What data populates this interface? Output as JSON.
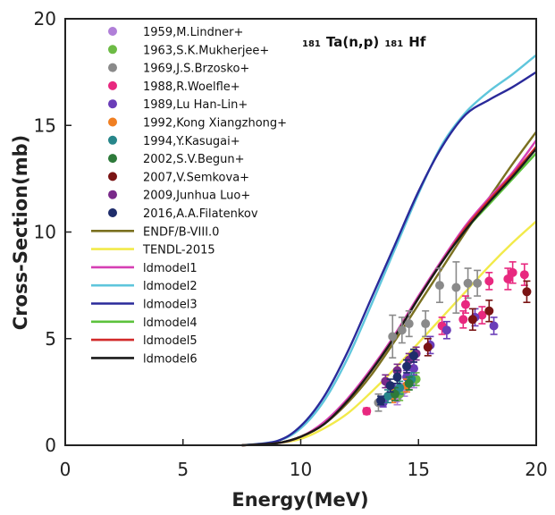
{
  "chart_data": {
    "type": "scatter",
    "title_parts": {
      "a_mass": "181",
      "target": "Ta(n,p)",
      "p_mass": "181",
      "product": "Hf"
    },
    "xlabel": "Energy(MeV)",
    "ylabel": "Cross-Section(mb)",
    "xlim": [
      0,
      20
    ],
    "ylim": [
      0,
      20
    ],
    "x_ticks": [
      "0",
      "5",
      "10",
      "15",
      "20"
    ],
    "y_ticks": [
      "0",
      "5",
      "10",
      "15",
      "20"
    ],
    "grid": false,
    "legend_position": "top-left",
    "experimental": [
      {
        "name": "1959,M.Lindner+",
        "color": "#b07fd8",
        "points": [
          {
            "x": 14.1,
            "y": 2.2,
            "err": 0.3
          },
          {
            "x": 14.4,
            "y": 2.6,
            "err": 0.3
          },
          {
            "x": 14.8,
            "y": 3.0,
            "err": 0.3
          }
        ]
      },
      {
        "name": "1963,S.K.Mukherjee+",
        "color": "#6dbb45",
        "points": [
          {
            "x": 14.2,
            "y": 2.4,
            "err": 0.3
          },
          {
            "x": 14.6,
            "y": 2.9,
            "err": 0.3
          },
          {
            "x": 14.9,
            "y": 3.1,
            "err": 0.3
          }
        ]
      },
      {
        "name": "1969,J.S.Brzosko+",
        "color": "#8a8a8a",
        "points": [
          {
            "x": 13.3,
            "y": 2.0,
            "err": 0.4
          },
          {
            "x": 13.9,
            "y": 5.1,
            "err": 1.0
          },
          {
            "x": 14.3,
            "y": 5.4,
            "err": 0.6
          },
          {
            "x": 14.6,
            "y": 5.7,
            "err": 0.6
          },
          {
            "x": 15.3,
            "y": 5.7,
            "err": 0.6
          },
          {
            "x": 15.9,
            "y": 7.5,
            "err": 0.8
          },
          {
            "x": 16.6,
            "y": 7.4,
            "err": 1.2
          },
          {
            "x": 17.1,
            "y": 7.6,
            "err": 0.7
          },
          {
            "x": 17.5,
            "y": 7.6,
            "err": 0.6
          }
        ]
      },
      {
        "name": "1988,R.Woelfle+",
        "color": "#e8287f",
        "points": [
          {
            "x": 12.8,
            "y": 1.6,
            "err": 0.15
          },
          {
            "x": 16.0,
            "y": 5.6,
            "err": 0.4
          },
          {
            "x": 16.9,
            "y": 5.9,
            "err": 0.4
          },
          {
            "x": 17.0,
            "y": 6.6,
            "err": 0.4
          },
          {
            "x": 17.7,
            "y": 6.1,
            "err": 0.4
          },
          {
            "x": 18.0,
            "y": 7.7,
            "err": 0.4
          },
          {
            "x": 18.8,
            "y": 7.8,
            "err": 0.5
          },
          {
            "x": 19.0,
            "y": 8.1,
            "err": 0.5
          },
          {
            "x": 19.5,
            "y": 8.0,
            "err": 0.5
          }
        ]
      },
      {
        "name": "1989,Lu Han-Lin+",
        "color": "#6a3db8",
        "points": [
          {
            "x": 13.5,
            "y": 2.0,
            "err": 0.2
          },
          {
            "x": 14.0,
            "y": 2.6,
            "err": 0.3
          },
          {
            "x": 14.5,
            "y": 3.2,
            "err": 0.3
          },
          {
            "x": 14.8,
            "y": 3.6,
            "err": 0.3
          },
          {
            "x": 15.5,
            "y": 4.7,
            "err": 0.4
          },
          {
            "x": 16.2,
            "y": 5.4,
            "err": 0.4
          },
          {
            "x": 17.4,
            "y": 6.0,
            "err": 0.4
          },
          {
            "x": 18.2,
            "y": 5.6,
            "err": 0.4
          }
        ]
      },
      {
        "name": "1992,Kong Xiangzhong+",
        "color": "#f07f22",
        "points": [
          {
            "x": 13.9,
            "y": 2.3,
            "err": 0.3
          },
          {
            "x": 14.5,
            "y": 2.8,
            "err": 0.3
          }
        ]
      },
      {
        "name": "1994,Y.Kasugai+",
        "color": "#27868a",
        "points": [
          {
            "x": 13.7,
            "y": 2.3,
            "err": 0.3
          },
          {
            "x": 14.2,
            "y": 2.7,
            "err": 0.3
          },
          {
            "x": 14.7,
            "y": 3.1,
            "err": 0.3
          }
        ]
      },
      {
        "name": "2002,S.V.Begun+",
        "color": "#2d7a3a",
        "points": [
          {
            "x": 14.0,
            "y": 2.4,
            "err": 0.3
          },
          {
            "x": 14.6,
            "y": 2.9,
            "err": 0.3
          }
        ]
      },
      {
        "name": "2007,V.Semkova+",
        "color": "#7a1414",
        "points": [
          {
            "x": 15.4,
            "y": 4.6,
            "err": 0.4
          },
          {
            "x": 17.3,
            "y": 5.9,
            "err": 0.5
          },
          {
            "x": 18.0,
            "y": 6.3,
            "err": 0.5
          },
          {
            "x": 19.6,
            "y": 7.2,
            "err": 0.5
          }
        ]
      },
      {
        "name": "2009,Junhua Luo+",
        "color": "#7a2a8a",
        "points": [
          {
            "x": 13.6,
            "y": 3.0,
            "err": 0.3
          },
          {
            "x": 14.1,
            "y": 3.5,
            "err": 0.3
          },
          {
            "x": 14.6,
            "y": 4.0,
            "err": 0.3
          },
          {
            "x": 14.9,
            "y": 4.3,
            "err": 0.3
          }
        ]
      },
      {
        "name": "2016,A.A.Filatenkov",
        "color": "#1f2d6b",
        "points": [
          {
            "x": 13.4,
            "y": 2.1,
            "err": 0.2
          },
          {
            "x": 13.8,
            "y": 2.8,
            "err": 0.3
          },
          {
            "x": 14.1,
            "y": 3.2,
            "err": 0.3
          },
          {
            "x": 14.5,
            "y": 3.7,
            "err": 0.3
          },
          {
            "x": 14.8,
            "y": 4.2,
            "err": 0.3
          }
        ]
      }
    ],
    "evaluations": [
      {
        "name": "ENDF/B-VIII.0",
        "color": "#7a7020",
        "points": [
          [
            7.5,
            0
          ],
          [
            9,
            0.1
          ],
          [
            10,
            0.4
          ],
          [
            11,
            1.0
          ],
          [
            12,
            2.0
          ],
          [
            13,
            3.3
          ],
          [
            14,
            4.9
          ],
          [
            15,
            6.6
          ],
          [
            16,
            8.3
          ],
          [
            17,
            10.0
          ],
          [
            18,
            11.6
          ],
          [
            19,
            13.2
          ],
          [
            20,
            14.7
          ]
        ]
      },
      {
        "name": "TENDL-2015",
        "color": "#f2ea4a",
        "points": [
          [
            7.5,
            0
          ],
          [
            9,
            0.1
          ],
          [
            10,
            0.3
          ],
          [
            11,
            0.8
          ],
          [
            12,
            1.5
          ],
          [
            13,
            2.5
          ],
          [
            14,
            3.6
          ],
          [
            15,
            4.8
          ],
          [
            16,
            6.0
          ],
          [
            17,
            7.2
          ],
          [
            18,
            8.4
          ],
          [
            19,
            9.5
          ],
          [
            20,
            10.5
          ]
        ]
      },
      {
        "name": "ldmodel1",
        "color": "#d63fb4",
        "points": [
          [
            7.5,
            0
          ],
          [
            9,
            0.1
          ],
          [
            10,
            0.4
          ],
          [
            11,
            1.1
          ],
          [
            12,
            2.2
          ],
          [
            13,
            3.6
          ],
          [
            14,
            5.2
          ],
          [
            15,
            7.0
          ],
          [
            16,
            8.7
          ],
          [
            17,
            10.3
          ],
          [
            18,
            11.6
          ],
          [
            19,
            12.8
          ],
          [
            20,
            14.3
          ]
        ]
      },
      {
        "name": "ldmodel2",
        "color": "#5fc6dc",
        "points": [
          [
            7.5,
            0
          ],
          [
            9,
            0.2
          ],
          [
            10,
            0.8
          ],
          [
            11,
            2.1
          ],
          [
            12,
            4.1
          ],
          [
            13,
            6.6
          ],
          [
            14,
            9.2
          ],
          [
            15,
            11.8
          ],
          [
            16,
            14.1
          ],
          [
            17,
            15.6
          ],
          [
            18,
            16.6
          ],
          [
            19,
            17.4
          ],
          [
            20,
            18.3
          ]
        ]
      },
      {
        "name": "ldmodel3",
        "color": "#2a2a9a",
        "points": [
          [
            7.5,
            0
          ],
          [
            9,
            0.2
          ],
          [
            10,
            0.9
          ],
          [
            11,
            2.3
          ],
          [
            12,
            4.4
          ],
          [
            13,
            6.9
          ],
          [
            14,
            9.4
          ],
          [
            15,
            11.9
          ],
          [
            16,
            14.0
          ],
          [
            17,
            15.5
          ],
          [
            18,
            16.2
          ],
          [
            19,
            16.8
          ],
          [
            20,
            17.5
          ]
        ]
      },
      {
        "name": "ldmodel4",
        "color": "#5cc23c",
        "points": [
          [
            7.5,
            0
          ],
          [
            9,
            0.1
          ],
          [
            10,
            0.4
          ],
          [
            11,
            1.0
          ],
          [
            12,
            2.1
          ],
          [
            13,
            3.5
          ],
          [
            14,
            5.1
          ],
          [
            15,
            6.9
          ],
          [
            16,
            8.6
          ],
          [
            17,
            10.1
          ],
          [
            18,
            11.3
          ],
          [
            19,
            12.5
          ],
          [
            20,
            13.7
          ]
        ]
      },
      {
        "name": "ldmodel5",
        "color": "#d22a2a",
        "points": [
          [
            7.5,
            0
          ],
          [
            9,
            0.1
          ],
          [
            10,
            0.4
          ],
          [
            11,
            1.0
          ],
          [
            12,
            2.1
          ],
          [
            13,
            3.5
          ],
          [
            14,
            5.1
          ],
          [
            15,
            6.9
          ],
          [
            16,
            8.6
          ],
          [
            17,
            10.2
          ],
          [
            18,
            11.5
          ],
          [
            19,
            12.7
          ],
          [
            20,
            14.0
          ]
        ]
      },
      {
        "name": "ldmodel6",
        "color": "#1a1a1a",
        "points": [
          [
            7.5,
            0
          ],
          [
            9,
            0.1
          ],
          [
            10,
            0.4
          ],
          [
            11,
            1.0
          ],
          [
            12,
            2.1
          ],
          [
            13,
            3.5
          ],
          [
            14,
            5.1
          ],
          [
            15,
            6.9
          ],
          [
            16,
            8.6
          ],
          [
            17,
            10.1
          ],
          [
            18,
            11.4
          ],
          [
            19,
            12.6
          ],
          [
            20,
            13.9
          ]
        ]
      }
    ]
  }
}
